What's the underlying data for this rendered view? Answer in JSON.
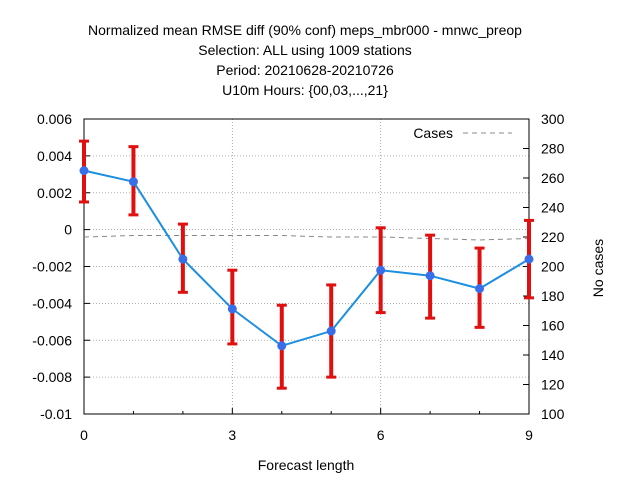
{
  "chart_data": {
    "type": "line",
    "title_lines": [
      "Normalized mean RMSE diff (90% conf) meps_mbr000 - mnwc_preop",
      "Selection: ALL using  1009 stations",
      "Period: 20210628-20210726",
      "U10m   Hours: {00,03,...,21}"
    ],
    "xlabel": "Forecast length",
    "ylabel": "",
    "y2label": "No cases",
    "xlim": [
      0,
      9
    ],
    "ylim": [
      -0.01,
      0.006
    ],
    "y2lim": [
      100,
      300
    ],
    "x_ticks": [
      "0",
      "3",
      "6",
      "9"
    ],
    "y_ticks": [
      "0.006",
      "0.004",
      "0.002",
      "0",
      "-0.002",
      "-0.004",
      "-0.006",
      "-0.008",
      "-0.01"
    ],
    "y2_ticks": [
      "300",
      "280",
      "260",
      "240",
      "220",
      "200",
      "180",
      "160",
      "140",
      "120",
      "100"
    ],
    "grid": true,
    "legend_position": "top-right",
    "series": [
      {
        "values_kind": "main",
        "x": [
          0,
          1,
          2,
          3,
          4,
          5,
          6,
          7,
          8,
          9
        ],
        "y": [
          0.0032,
          0.0026,
          -0.0016,
          -0.0043,
          -0.0063,
          -0.0055,
          -0.0022,
          -0.0025,
          -0.0032,
          -0.0016
        ],
        "err_low": [
          0.0015,
          0.0008,
          -0.0034,
          -0.0062,
          -0.0086,
          -0.008,
          -0.0045,
          -0.0048,
          -0.0053,
          -0.0037
        ],
        "err_high": [
          0.0048,
          0.0045,
          0.0003,
          -0.0022,
          -0.0041,
          -0.003,
          0.0001,
          -0.0003,
          -0.001,
          0.0005
        ],
        "color": "#1c8fe0",
        "err_color": "#e01010"
      },
      {
        "name": "Cases",
        "values_kind": "cases",
        "x": [
          0,
          1,
          2,
          3,
          4,
          5,
          6,
          7,
          8,
          9
        ],
        "y": [
          220,
          221,
          221,
          221,
          221,
          220,
          220,
          219,
          218,
          219
        ],
        "color": "#888888"
      }
    ]
  }
}
